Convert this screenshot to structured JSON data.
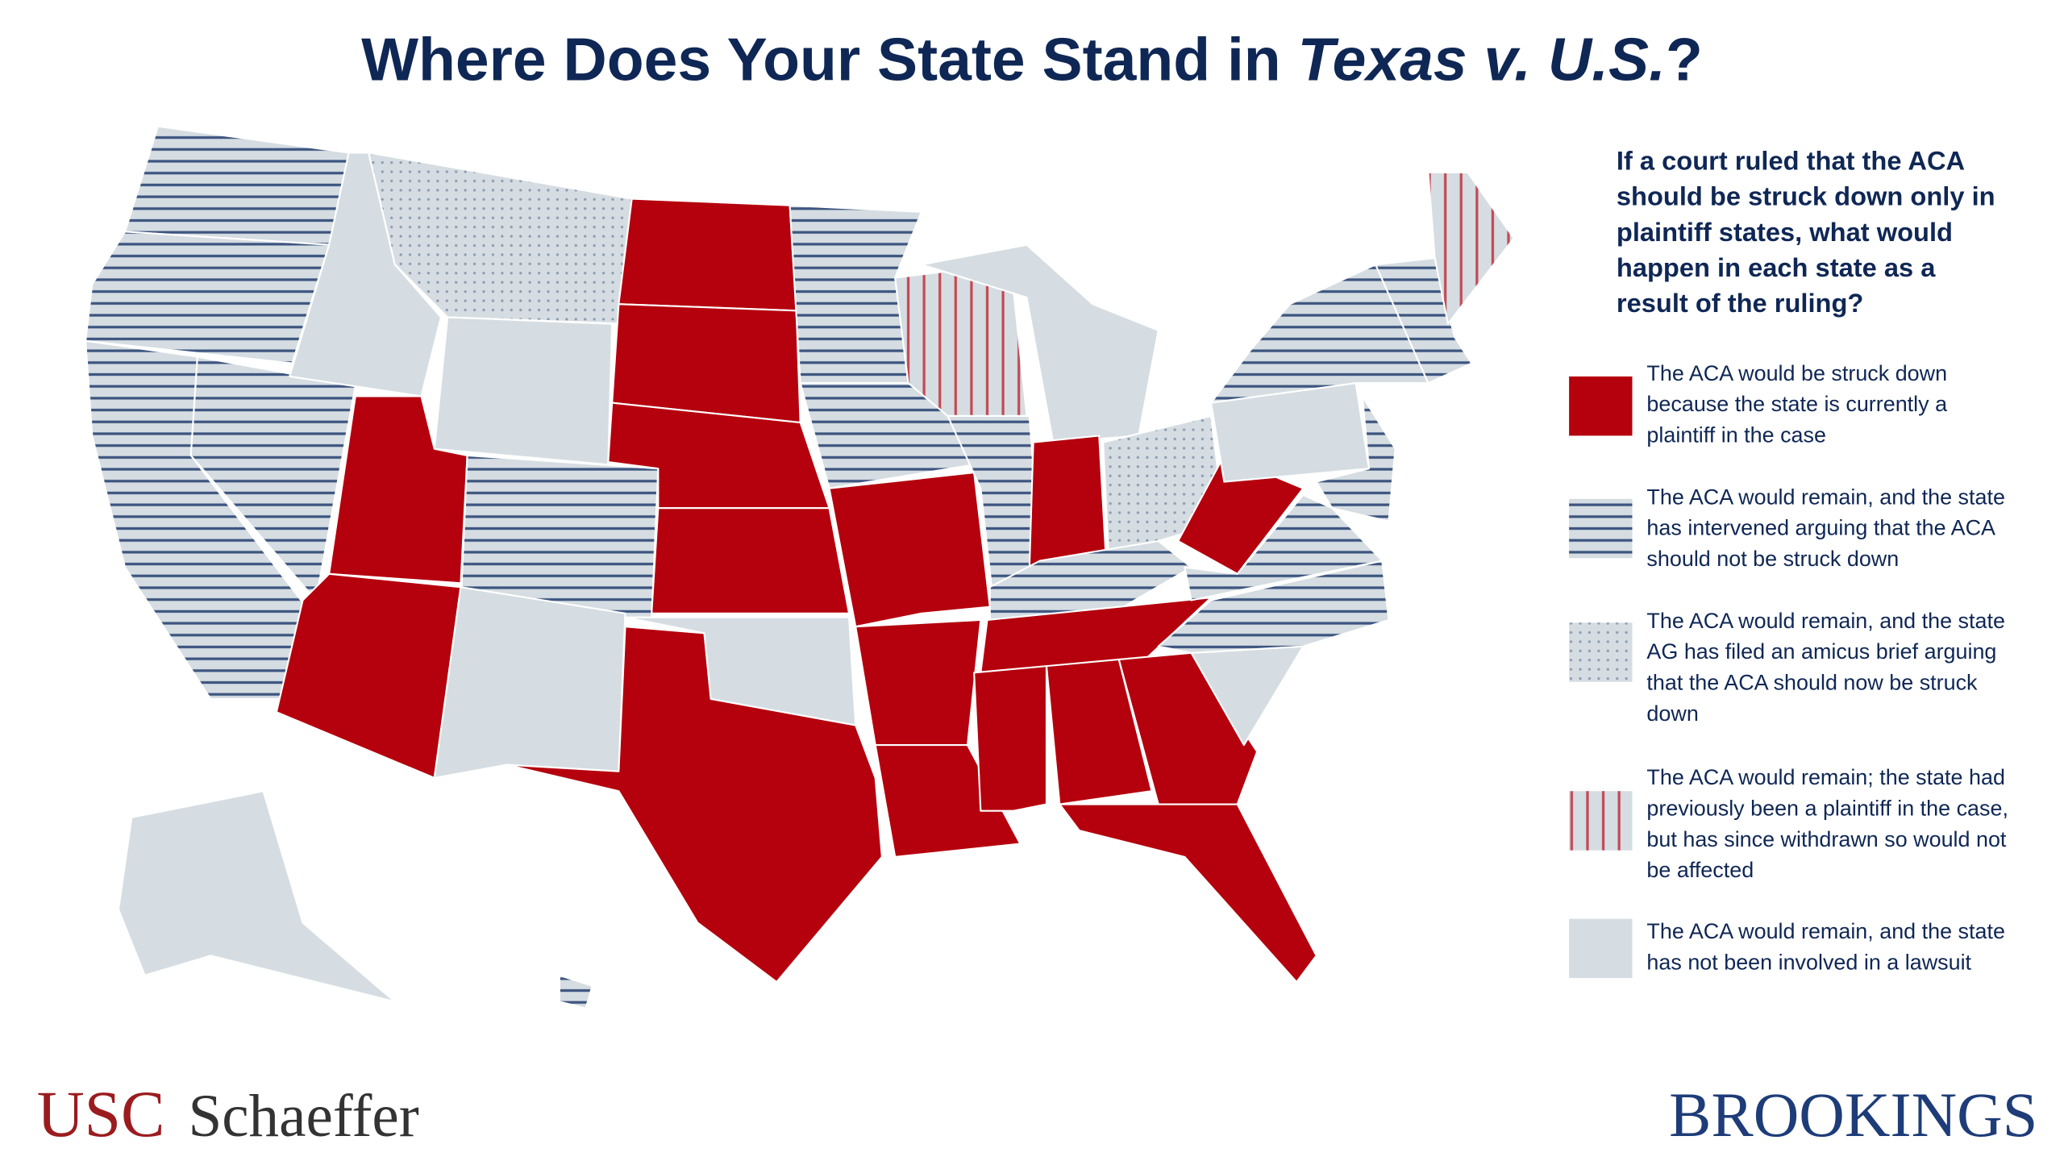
{
  "header": {
    "title_start": "Where Does Your State Stand in ",
    "title_italic": "Texas v. U.S.",
    "title_end": "?"
  },
  "question": {
    "lines": [
      "If a court ruled that the ACA",
      "should be struck down only in",
      "plaintiff states, what would",
      "happen in each state as a",
      "result of the ruling?"
    ]
  },
  "legend": [
    {
      "lines": [
        "The ACA would be struck down",
        "because the state is currently a",
        "plaintiff in the case"
      ]
    },
    {
      "lines": [
        "The ACA would remain, and the state",
        "has intervened arguing that the ACA",
        "should not be struck down"
      ]
    },
    {
      "lines": [
        "The ACA would remain, and the state",
        "AG has filed an amicus brief arguing",
        "that the ACA should now be struck",
        "down"
      ]
    },
    {
      "lines": [
        "The ACA would remain; the state had",
        "previously been a plaintiff in the case,",
        "but has since withdrawn so would not",
        "be affected"
      ]
    },
    {
      "lines": [
        "The ACA would remain, and the state",
        "has not been involved in a lawsuit"
      ]
    }
  ],
  "logos": {
    "usc": "USC",
    "schaeffer": "Schaeffer",
    "brookings": "BROOKINGS"
  }
}
